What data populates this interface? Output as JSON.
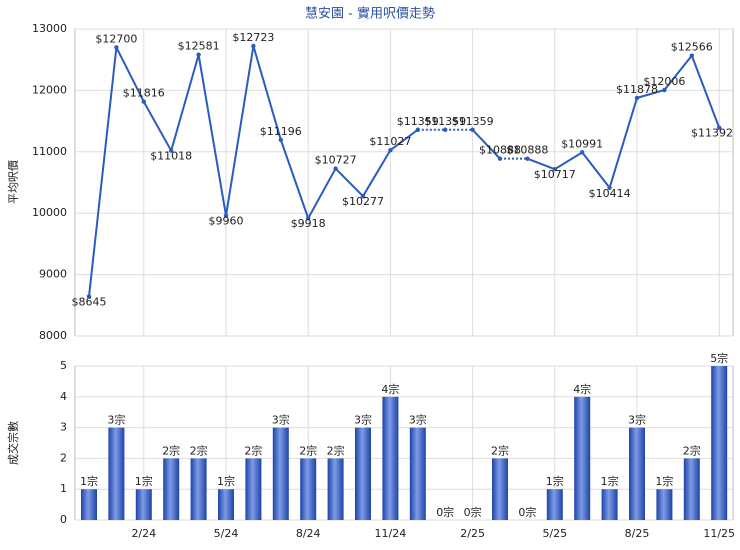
{
  "title": "慧安園 - 實用呎價走勢",
  "chart_data": [
    {
      "type": "line",
      "ylabel": "平均呎價",
      "color": "#2a5cbf",
      "values": [
        8645,
        12700,
        11816,
        11018,
        12581,
        9960,
        12723,
        11196,
        9918,
        10727,
        10277,
        11027,
        11359,
        11359,
        11359,
        10888,
        10888,
        10717,
        10991,
        10414,
        11878,
        12006,
        12566,
        11392
      ],
      "value_labels": [
        "$8645",
        "$12700",
        "$11816",
        "$11018",
        "$12581",
        "$9960",
        "$12723",
        "$11196",
        "$9918",
        "$10727",
        "$10277",
        "$11027",
        "$11359",
        "$11359",
        "$11359",
        "$10888",
        "$10888",
        "$10717",
        "$10991",
        "$10414",
        "$11878",
        "$12006",
        "$12566",
        "$11392"
      ],
      "ylim": [
        8000,
        13000
      ],
      "yticks": [
        8000,
        9000,
        10000,
        11000,
        12000,
        13000
      ],
      "grid": true
    },
    {
      "type": "bar",
      "ylabel": "成交宗數",
      "color": "#3a63c8",
      "categories": [
        null,
        null,
        "2/24",
        null,
        null,
        "5/24",
        null,
        null,
        "8/24",
        null,
        null,
        "11/24",
        null,
        null,
        "2/25",
        null,
        null,
        "5/25",
        null,
        null,
        "8/25",
        null,
        null,
        "11/25"
      ],
      "values": [
        1,
        3,
        1,
        2,
        2,
        1,
        2,
        3,
        2,
        2,
        3,
        4,
        3,
        0,
        0,
        2,
        0,
        1,
        4,
        1,
        3,
        1,
        2,
        5
      ],
      "value_labels": [
        "1宗",
        "3宗",
        "1宗",
        "2宗",
        "2宗",
        "1宗",
        "2宗",
        "3宗",
        "2宗",
        "2宗",
        "3宗",
        "4宗",
        "3宗",
        "0宗",
        "0宗",
        "2宗",
        "0宗",
        "1宗",
        "4宗",
        "1宗",
        "3宗",
        "1宗",
        "2宗",
        "5宗"
      ],
      "ylim": [
        0,
        5
      ],
      "yticks": [
        0,
        1,
        2,
        3,
        4,
        5
      ],
      "grid": true
    }
  ]
}
